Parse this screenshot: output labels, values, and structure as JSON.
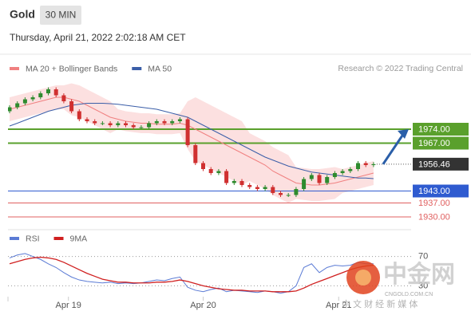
{
  "chart_data": {
    "type": "candlestick",
    "title": "Gold",
    "timeframe": "30 MIN",
    "subtitle": "Thursday, April 21, 2022 2:02:18 AM CET",
    "source": "Research © 2022 Trading Central",
    "ylim": [
      1926,
      2002
    ],
    "up_color": "#2e8b2e",
    "down_color": "#d03030",
    "open": [
      1983,
      1985,
      1987,
      1989,
      1990,
      1992,
      1994,
      1991,
      1988,
      1983,
      1979,
      1978,
      1977,
      1977,
      1976,
      1977,
      1976,
      1975,
      1975,
      1977,
      1978,
      1977,
      1978,
      1979,
      1966,
      1957,
      1954,
      1952,
      1953,
      1947,
      1948,
      1946,
      1945,
      1944,
      1945,
      1942,
      1941,
      1941,
      1944,
      1949,
      1951,
      1947,
      1950,
      1952,
      1953,
      1954,
      1957,
      1956
    ],
    "high": [
      1986,
      1988,
      1990,
      1991,
      1993,
      1995,
      1995,
      1992,
      1989,
      1984,
      1980,
      1979,
      1978,
      1978,
      1978,
      1978,
      1977,
      1976,
      1978,
      1979,
      1979,
      1979,
      1980,
      1980,
      1967,
      1958,
      1955,
      1954,
      1954,
      1949,
      1949,
      1947,
      1946,
      1946,
      1946,
      1943,
      1942,
      1945,
      1950,
      1952,
      1952,
      1951,
      1953,
      1954,
      1955,
      1958,
      1958,
      1957.5
    ],
    "low": [
      1982,
      1984,
      1986,
      1988,
      1989,
      1991,
      1990,
      1987,
      1982,
      1978,
      1977,
      1976,
      1976,
      1975,
      1975,
      1975,
      1974,
      1974,
      1974,
      1976,
      1976,
      1976,
      1977,
      1965,
      1956,
      1953,
      1951,
      1951,
      1946,
      1946,
      1945,
      1944,
      1943,
      1943,
      1941,
      1940,
      1940,
      1940,
      1943,
      1948,
      1946,
      1946,
      1949,
      1951,
      1952,
      1953,
      1955,
      1955
    ],
    "close": [
      1985,
      1987,
      1989,
      1990,
      1992,
      1994,
      1991,
      1988,
      1983,
      1979,
      1978,
      1977,
      1977,
      1976,
      1977,
      1976,
      1975,
      1975,
      1977,
      1978,
      1977,
      1978,
      1979,
      1966,
      1957,
      1954,
      1952,
      1953,
      1947,
      1948,
      1946,
      1945,
      1944,
      1945,
      1942,
      1941,
      1941,
      1944,
      1949,
      1951,
      1947,
      1950,
      1952,
      1953,
      1954,
      1957,
      1956,
      1956.46
    ],
    "series": [
      {
        "name": "MA 20 + Bollinger Bands",
        "color": "#f08080",
        "values": [
          1984,
          1985,
          1986,
          1987,
          1988,
          1989,
          1990,
          1990,
          1989,
          1988,
          1986,
          1984,
          1982,
          1980,
          1979,
          1978,
          1977.5,
          1977,
          1977,
          1976.5,
          1976.5,
          1976.5,
          1977,
          1976,
          1974,
          1972,
          1970,
          1968,
          1966,
          1964,
          1962,
          1960,
          1958,
          1956,
          1953,
          1951,
          1949,
          1947,
          1946.5,
          1946,
          1946,
          1946.5,
          1947,
          1948,
          1949,
          1950,
          1951,
          1952
        ]
      },
      {
        "name": "MA 50",
        "color": "#3b5ea8",
        "values": [
          1975.6,
          1977,
          1978.5,
          1980,
          1981.5,
          1983,
          1984,
          1985,
          1986,
          1986.5,
          1987,
          1987,
          1987,
          1986.8,
          1986.5,
          1986,
          1985.5,
          1985,
          1984.5,
          1984,
          1983,
          1982,
          1981,
          1980,
          1978,
          1976,
          1974,
          1972,
          1970,
          1968,
          1966,
          1964,
          1962,
          1960,
          1958.5,
          1957,
          1955.5,
          1954.5,
          1953.5,
          1952.5,
          1952,
          1951.5,
          1951,
          1950.5,
          1950,
          1949.5,
          1949.5,
          1949.2
        ]
      }
    ],
    "bollinger": {
      "color": "#fbd5d5",
      "upper": [
        1990,
        1991,
        1992,
        1993,
        1994,
        1995,
        1996,
        1996,
        1997,
        1996,
        1994,
        1992,
        1990,
        1988,
        1984,
        1983,
        1982.5,
        1982,
        1982,
        1981.5,
        1981.5,
        1981.5,
        1982,
        1988,
        1990,
        1988,
        1986,
        1984,
        1982,
        1980,
        1978,
        1972,
        1970,
        1968,
        1965,
        1963,
        1961,
        1955,
        1954.5,
        1954,
        1954,
        1954.5,
        1955,
        1954,
        1955,
        1956,
        1957,
        1958
      ],
      "lower": [
        1978,
        1979,
        1980,
        1981,
        1982,
        1983,
        1984,
        1984,
        1981,
        1980,
        1978,
        1976,
        1974,
        1972,
        1974,
        1973,
        1972.5,
        1972,
        1972,
        1971.5,
        1971.5,
        1971.5,
        1972,
        1964,
        1958,
        1956,
        1954,
        1952,
        1950,
        1948,
        1946,
        1948,
        1946,
        1944,
        1941,
        1939,
        1937,
        1939,
        1938.5,
        1938,
        1938,
        1938.5,
        1939,
        1942,
        1943,
        1944,
        1945,
        1946
      ]
    },
    "levels": [
      {
        "value": 1974,
        "label": "1974.00",
        "color": "#5aa02c",
        "style": "box"
      },
      {
        "value": 1967,
        "label": "1967.00",
        "color": "#5aa02c",
        "style": "box"
      },
      {
        "value": 1943,
        "label": "1943.00",
        "color": "#2f5bd0",
        "style": "box"
      },
      {
        "value": 1937,
        "label": "1937.00",
        "color": "#e06060",
        "style": "text"
      },
      {
        "value": 1930,
        "label": "1930.00",
        "color": "#e06060",
        "style": "text"
      }
    ],
    "current": {
      "value": 1956.46,
      "color": "#333333"
    },
    "xticks": [
      {
        "value": 7.6,
        "label": "Apr 19"
      },
      {
        "value": 25,
        "label": "Apr 20"
      },
      {
        "value": 42.5,
        "label": "Apr 21"
      }
    ],
    "rsi": {
      "ylim": [
        12,
        88
      ],
      "yticks": [
        30,
        70
      ],
      "series": [
        {
          "name": "RSI",
          "color": "#5b7bd5",
          "values": [
            68,
            72,
            74,
            70,
            66,
            60,
            55,
            48,
            42,
            38,
            36,
            35,
            34,
            35,
            33,
            34,
            33,
            34,
            36,
            38,
            37,
            40,
            42,
            28,
            24,
            22,
            25,
            27,
            22,
            24,
            23,
            22,
            21,
            23,
            22,
            20,
            22,
            30,
            55,
            60,
            48,
            55,
            58,
            57,
            58,
            62,
            60,
            60
          ]
        },
        {
          "name": "9MA",
          "color": "#d02020",
          "values": [
            60,
            63,
            66,
            68,
            69,
            68,
            66,
            62,
            57,
            52,
            47,
            43,
            39,
            37,
            35,
            35,
            34,
            34,
            34,
            35,
            35,
            36,
            38,
            36,
            33,
            30,
            28,
            26,
            25,
            24,
            24,
            23,
            23,
            23,
            22,
            22,
            22,
            23,
            27,
            32,
            36,
            40,
            44,
            48,
            52,
            55,
            57,
            58
          ]
        }
      ]
    },
    "watermark": {
      "name": "中金网",
      "url": "CNGOLD.COM.CN",
      "tagline": "中 文 财 经 新 媒 体"
    }
  }
}
